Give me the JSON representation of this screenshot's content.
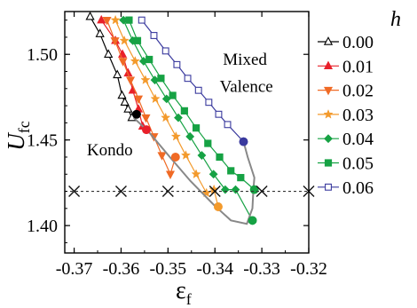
{
  "chart_data": {
    "type": "line",
    "xlabel": "ε",
    "xlabel_sub": "f",
    "ylabel": "U",
    "ylabel_sub": "fc",
    "xlim": [
      -0.372,
      -0.32
    ],
    "ylim": [
      1.384,
      1.525
    ],
    "xticks": [
      -0.37,
      -0.36,
      -0.35,
      -0.34,
      -0.33,
      -0.32
    ],
    "xtick_labels": [
      "-0.37",
      "-0.36",
      "-0.35",
      "-0.34",
      "-0.33",
      "-0.32"
    ],
    "yticks": [
      1.4,
      1.45,
      1.5
    ],
    "ytick_labels": [
      "1.40",
      "1.45",
      "1.50"
    ],
    "legend": {
      "title": "h",
      "position": "right, outside plot"
    },
    "annotations": [
      {
        "text": "Mixed",
        "x": -0.3336,
        "y": 1.494
      },
      {
        "text": "Valence",
        "x": -0.3333,
        "y": 1.478
      },
      {
        "text": "Kondo",
        "x": -0.3624,
        "y": 1.441
      }
    ],
    "series": [
      {
        "name": "0.00",
        "color": "#000000",
        "marker": "triangle-up-open",
        "x": [
          -0.3666,
          -0.3645,
          -0.3627,
          -0.3608,
          -0.3598,
          -0.3592,
          -0.3585,
          -0.3577
        ],
        "y": [
          1.522,
          1.512,
          1.5,
          1.488,
          1.476,
          1.472,
          1.468,
          1.463
        ],
        "end": {
          "x": -0.3567,
          "y": 1.465,
          "filled": true
        }
      },
      {
        "name": "0.01",
        "color": "#e8202a",
        "marker": "triangle-up",
        "x": [
          -0.3642,
          -0.3612,
          -0.3597,
          -0.3585,
          -0.3575,
          -0.3563,
          -0.3554
        ],
        "y": [
          1.52,
          1.508,
          1.5,
          1.489,
          1.479,
          1.468,
          1.458
        ],
        "end": {
          "x": -0.3546,
          "y": 1.456,
          "filled": true
        }
      },
      {
        "name": "0.02",
        "color": "#f06a25",
        "marker": "triangle-down",
        "x": [
          -0.363,
          -0.3613,
          -0.3596,
          -0.358,
          -0.3563,
          -0.3547,
          -0.353,
          -0.3513,
          -0.3495
        ],
        "y": [
          1.52,
          1.508,
          1.496,
          1.485,
          1.474,
          1.463,
          1.452,
          1.441,
          1.43
        ],
        "end": {
          "x": -0.3484,
          "y": 1.44,
          "filled": true
        }
      },
      {
        "name": "0.03",
        "color": "#f39a2c",
        "marker": "star",
        "x": [
          -0.3612,
          -0.3593,
          -0.357,
          -0.3548,
          -0.3527,
          -0.3505,
          -0.3483,
          -0.3462,
          -0.344,
          -0.3418,
          -0.3402
        ],
        "y": [
          1.52,
          1.508,
          1.496,
          1.485,
          1.474,
          1.463,
          1.452,
          1.441,
          1.43,
          1.419,
          1.421
        ],
        "end": {
          "x": -0.3393,
          "y": 1.411,
          "filled": true
        }
      },
      {
        "name": "0.04",
        "color": "#16a244",
        "marker": "diamond",
        "x": [
          -0.3595,
          -0.3575,
          -0.3552,
          -0.3528,
          -0.3503,
          -0.3478,
          -0.3453,
          -0.3428,
          -0.3403,
          -0.3378,
          -0.3356
        ],
        "y": [
          1.52,
          1.508,
          1.496,
          1.485,
          1.474,
          1.463,
          1.452,
          1.441,
          1.43,
          1.421,
          1.421
        ],
        "end": {
          "x": -0.332,
          "y": 1.403,
          "filled": true
        }
      },
      {
        "name": "0.05",
        "color": "#16a244",
        "marker": "square",
        "x": [
          -0.3583,
          -0.3565,
          -0.354,
          -0.3515,
          -0.349,
          -0.3465,
          -0.344,
          -0.3415,
          -0.339,
          -0.3366,
          -0.3345
        ],
        "y": [
          1.52,
          1.508,
          1.497,
          1.486,
          1.476,
          1.467,
          1.457,
          1.448,
          1.44,
          1.432,
          1.428
        ],
        "end": {
          "x": -0.3316,
          "y": 1.421,
          "filled": true
        }
      },
      {
        "name": "0.06",
        "color": "#3a3a9e",
        "marker": "square-open",
        "x": [
          -0.3556,
          -0.353,
          -0.3505,
          -0.3481,
          -0.3458,
          -0.3435,
          -0.3413,
          -0.3392,
          -0.3373
        ],
        "y": [
          1.52,
          1.511,
          1.502,
          1.494,
          1.486,
          1.479,
          1.472,
          1.465,
          1.459
        ],
        "end": {
          "x": -0.3339,
          "y": 1.449,
          "filled": true
        }
      }
    ],
    "boundary_curve": {
      "color": "#888888",
      "x": [
        -0.3573,
        -0.3542,
        -0.3496,
        -0.3452,
        -0.3402,
        -0.3366,
        -0.3332,
        -0.332,
        -0.3318,
        -0.3316,
        -0.333,
        -0.3339
      ],
      "y": [
        1.463,
        1.455,
        1.44,
        1.426,
        1.412,
        1.403,
        1.401,
        1.41,
        1.421,
        1.428,
        1.44,
        1.449
      ]
    },
    "reference_line": {
      "style": "dashed",
      "y": 1.42,
      "cross_markers_x": [
        -0.37,
        -0.36,
        -0.35,
        -0.34,
        -0.33,
        -0.32
      ]
    }
  }
}
